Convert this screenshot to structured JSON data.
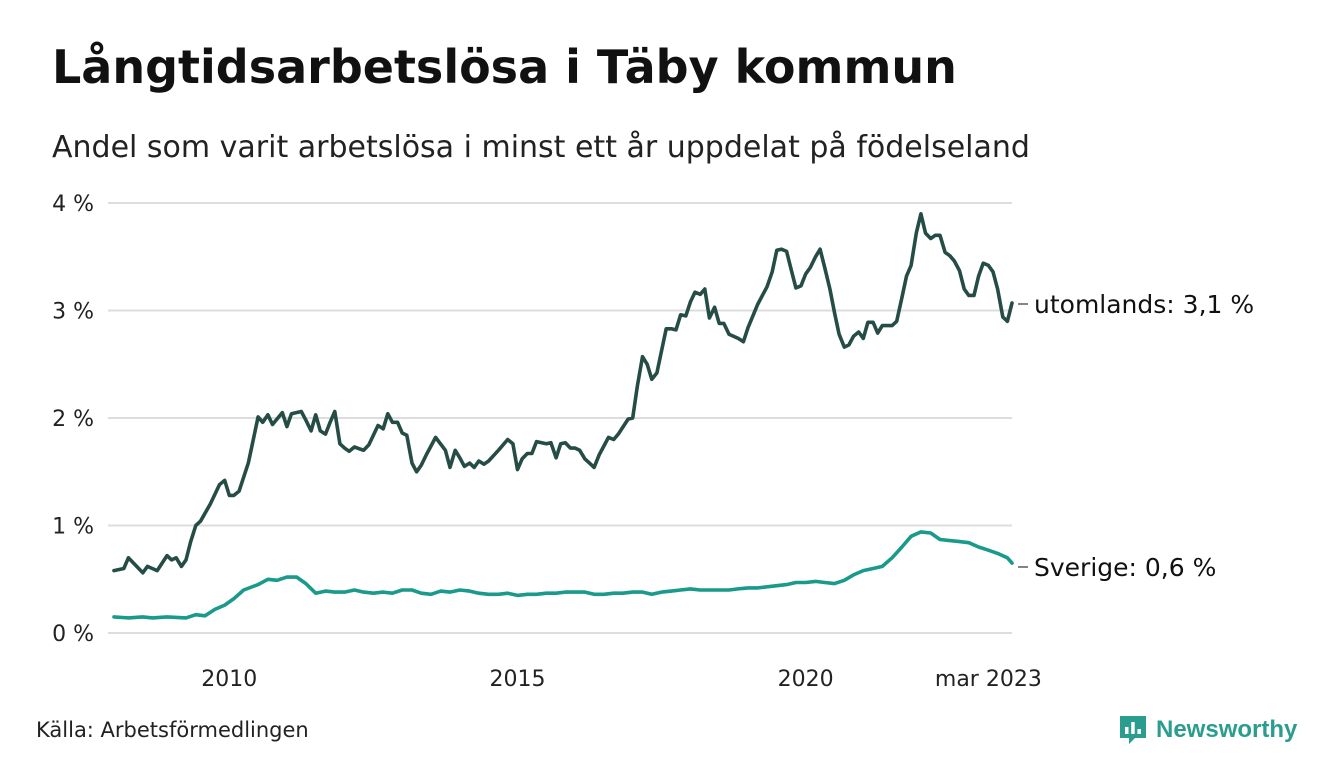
{
  "title": "Långtidsarbetslösa i Täby kommun",
  "subtitle": "Andel som varit arbetslösa i minst ett år uppdelat på födelseland",
  "source": "Källa: Arbetsförmedlingen",
  "logo": {
    "text": "Newsworthy",
    "icon": "newsworthy-logo-icon",
    "color": "#2a9d8f"
  },
  "chart_data": {
    "type": "line",
    "xlim": [
      2008.0,
      2023.17
    ],
    "ylim": [
      0,
      4
    ],
    "grid": true,
    "y_ticks": [
      {
        "value": 0,
        "label": "0 %"
      },
      {
        "value": 1,
        "label": "1 %"
      },
      {
        "value": 2,
        "label": "2 %"
      },
      {
        "value": 3,
        "label": "3 %"
      },
      {
        "value": 4,
        "label": "4 %"
      }
    ],
    "x_ticks": [
      {
        "value": 2010,
        "label": "2010"
      },
      {
        "value": 2015,
        "label": "2015"
      },
      {
        "value": 2020,
        "label": "2020"
      },
      {
        "value": 2023.17,
        "label": "mar 2023"
      }
    ],
    "series": [
      {
        "name": "utomlands",
        "end_label": "utomlands: 3,1 %",
        "color": "#264d45",
        "points": [
          [
            2008.0,
            0.58
          ],
          [
            2008.17,
            0.6
          ],
          [
            2008.25,
            0.7
          ],
          [
            2008.5,
            0.56
          ],
          [
            2008.58,
            0.62
          ],
          [
            2008.75,
            0.58
          ],
          [
            2008.92,
            0.72
          ],
          [
            2009.0,
            0.68
          ],
          [
            2009.08,
            0.7
          ],
          [
            2009.17,
            0.62
          ],
          [
            2009.25,
            0.68
          ],
          [
            2009.33,
            0.85
          ],
          [
            2009.42,
            1.0
          ],
          [
            2009.5,
            1.04
          ],
          [
            2009.67,
            1.2
          ],
          [
            2009.83,
            1.38
          ],
          [
            2009.92,
            1.42
          ],
          [
            2010.0,
            1.28
          ],
          [
            2010.08,
            1.28
          ],
          [
            2010.17,
            1.32
          ],
          [
            2010.33,
            1.58
          ],
          [
            2010.5,
            2.01
          ],
          [
            2010.58,
            1.96
          ],
          [
            2010.67,
            2.03
          ],
          [
            2010.75,
            1.94
          ],
          [
            2010.92,
            2.05
          ],
          [
            2011.0,
            1.92
          ],
          [
            2011.08,
            2.04
          ],
          [
            2011.25,
            2.06
          ],
          [
            2011.33,
            1.98
          ],
          [
            2011.42,
            1.88
          ],
          [
            2011.5,
            2.03
          ],
          [
            2011.58,
            1.88
          ],
          [
            2011.67,
            1.85
          ],
          [
            2011.75,
            1.96
          ],
          [
            2011.83,
            2.06
          ],
          [
            2011.92,
            1.76
          ],
          [
            2012.0,
            1.72
          ],
          [
            2012.08,
            1.69
          ],
          [
            2012.17,
            1.73
          ],
          [
            2012.33,
            1.7
          ],
          [
            2012.42,
            1.75
          ],
          [
            2012.58,
            1.93
          ],
          [
            2012.67,
            1.9
          ],
          [
            2012.75,
            2.04
          ],
          [
            2012.83,
            1.96
          ],
          [
            2012.92,
            1.96
          ],
          [
            2013.0,
            1.86
          ],
          [
            2013.08,
            1.84
          ],
          [
            2013.17,
            1.58
          ],
          [
            2013.25,
            1.5
          ],
          [
            2013.33,
            1.56
          ],
          [
            2013.42,
            1.66
          ],
          [
            2013.58,
            1.82
          ],
          [
            2013.75,
            1.7
          ],
          [
            2013.83,
            1.54
          ],
          [
            2013.92,
            1.7
          ],
          [
            2014.0,
            1.63
          ],
          [
            2014.08,
            1.55
          ],
          [
            2014.17,
            1.58
          ],
          [
            2014.25,
            1.54
          ],
          [
            2014.33,
            1.6
          ],
          [
            2014.42,
            1.57
          ],
          [
            2014.5,
            1.6
          ],
          [
            2014.67,
            1.7
          ],
          [
            2014.83,
            1.8
          ],
          [
            2014.92,
            1.76
          ],
          [
            2015.0,
            1.52
          ],
          [
            2015.08,
            1.62
          ],
          [
            2015.17,
            1.67
          ],
          [
            2015.25,
            1.67
          ],
          [
            2015.33,
            1.78
          ],
          [
            2015.5,
            1.76
          ],
          [
            2015.58,
            1.77
          ],
          [
            2015.67,
            1.63
          ],
          [
            2015.75,
            1.76
          ],
          [
            2015.83,
            1.77
          ],
          [
            2015.92,
            1.72
          ],
          [
            2016.0,
            1.72
          ],
          [
            2016.08,
            1.7
          ],
          [
            2016.17,
            1.62
          ],
          [
            2016.25,
            1.58
          ],
          [
            2016.33,
            1.54
          ],
          [
            2016.42,
            1.66
          ],
          [
            2016.58,
            1.82
          ],
          [
            2016.67,
            1.8
          ],
          [
            2016.75,
            1.85
          ],
          [
            2016.92,
            1.99
          ],
          [
            2017.0,
            2.0
          ],
          [
            2017.08,
            2.3
          ],
          [
            2017.17,
            2.57
          ],
          [
            2017.25,
            2.5
          ],
          [
            2017.33,
            2.36
          ],
          [
            2017.42,
            2.42
          ],
          [
            2017.58,
            2.83
          ],
          [
            2017.67,
            2.83
          ],
          [
            2017.75,
            2.82
          ],
          [
            2017.83,
            2.96
          ],
          [
            2017.92,
            2.95
          ],
          [
            2018.0,
            3.08
          ],
          [
            2018.08,
            3.17
          ],
          [
            2018.17,
            3.15
          ],
          [
            2018.25,
            3.2
          ],
          [
            2018.33,
            2.93
          ],
          [
            2018.42,
            3.03
          ],
          [
            2018.5,
            2.88
          ],
          [
            2018.58,
            2.88
          ],
          [
            2018.67,
            2.78
          ],
          [
            2018.83,
            2.74
          ],
          [
            2018.92,
            2.71
          ],
          [
            2019.0,
            2.84
          ],
          [
            2019.17,
            3.06
          ],
          [
            2019.33,
            3.22
          ],
          [
            2019.42,
            3.36
          ],
          [
            2019.5,
            3.56
          ],
          [
            2019.58,
            3.57
          ],
          [
            2019.67,
            3.55
          ],
          [
            2019.75,
            3.38
          ],
          [
            2019.83,
            3.21
          ],
          [
            2019.92,
            3.23
          ],
          [
            2020.0,
            3.34
          ],
          [
            2020.08,
            3.4
          ],
          [
            2020.17,
            3.5
          ],
          [
            2020.25,
            3.57
          ],
          [
            2020.33,
            3.4
          ],
          [
            2020.42,
            3.2
          ],
          [
            2020.5,
            2.98
          ],
          [
            2020.58,
            2.78
          ],
          [
            2020.67,
            2.66
          ],
          [
            2020.75,
            2.68
          ],
          [
            2020.83,
            2.76
          ],
          [
            2020.92,
            2.8
          ],
          [
            2021.0,
            2.74
          ],
          [
            2021.08,
            2.89
          ],
          [
            2021.17,
            2.89
          ],
          [
            2021.25,
            2.79
          ],
          [
            2021.33,
            2.86
          ],
          [
            2021.5,
            2.86
          ],
          [
            2021.58,
            2.9
          ],
          [
            2021.67,
            3.12
          ],
          [
            2021.75,
            3.32
          ],
          [
            2021.83,
            3.42
          ],
          [
            2021.92,
            3.72
          ],
          [
            2022.0,
            3.9
          ],
          [
            2022.08,
            3.72
          ],
          [
            2022.17,
            3.67
          ],
          [
            2022.25,
            3.7
          ],
          [
            2022.33,
            3.7
          ],
          [
            2022.42,
            3.54
          ],
          [
            2022.5,
            3.51
          ],
          [
            2022.58,
            3.46
          ],
          [
            2022.67,
            3.37
          ],
          [
            2022.75,
            3.2
          ],
          [
            2022.83,
            3.14
          ],
          [
            2022.92,
            3.14
          ],
          [
            2023.0,
            3.32
          ],
          [
            2023.08,
            3.44
          ],
          [
            2023.17,
            3.42
          ],
          [
            2023.25,
            3.36
          ],
          [
            2023.33,
            3.2
          ],
          [
            2023.42,
            2.94
          ],
          [
            2023.5,
            2.9
          ],
          [
            2023.58,
            3.07
          ]
        ]
      },
      {
        "name": "Sverige",
        "end_label": "Sverige: 0,6 %",
        "color": "#1a9a8a",
        "points": [
          [
            2008.0,
            0.15
          ],
          [
            2008.25,
            0.14
          ],
          [
            2008.5,
            0.15
          ],
          [
            2008.67,
            0.14
          ],
          [
            2008.92,
            0.15
          ],
          [
            2009.25,
            0.14
          ],
          [
            2009.42,
            0.17
          ],
          [
            2009.58,
            0.16
          ],
          [
            2009.75,
            0.22
          ],
          [
            2009.92,
            0.26
          ],
          [
            2010.08,
            0.32
          ],
          [
            2010.25,
            0.4
          ],
          [
            2010.5,
            0.45
          ],
          [
            2010.67,
            0.5
          ],
          [
            2010.83,
            0.49
          ],
          [
            2011.0,
            0.52
          ],
          [
            2011.17,
            0.52
          ],
          [
            2011.33,
            0.46
          ],
          [
            2011.5,
            0.37
          ],
          [
            2011.67,
            0.39
          ],
          [
            2011.83,
            0.38
          ],
          [
            2012.0,
            0.38
          ],
          [
            2012.17,
            0.4
          ],
          [
            2012.33,
            0.38
          ],
          [
            2012.5,
            0.37
          ],
          [
            2012.67,
            0.38
          ],
          [
            2012.83,
            0.37
          ],
          [
            2013.0,
            0.4
          ],
          [
            2013.17,
            0.4
          ],
          [
            2013.33,
            0.37
          ],
          [
            2013.5,
            0.36
          ],
          [
            2013.67,
            0.39
          ],
          [
            2013.83,
            0.38
          ],
          [
            2014.0,
            0.4
          ],
          [
            2014.17,
            0.39
          ],
          [
            2014.33,
            0.37
          ],
          [
            2014.5,
            0.36
          ],
          [
            2014.67,
            0.36
          ],
          [
            2014.83,
            0.37
          ],
          [
            2015.0,
            0.35
          ],
          [
            2015.17,
            0.36
          ],
          [
            2015.33,
            0.36
          ],
          [
            2015.5,
            0.37
          ],
          [
            2015.67,
            0.37
          ],
          [
            2015.83,
            0.38
          ],
          [
            2016.0,
            0.38
          ],
          [
            2016.17,
            0.38
          ],
          [
            2016.33,
            0.36
          ],
          [
            2016.5,
            0.36
          ],
          [
            2016.67,
            0.37
          ],
          [
            2016.83,
            0.37
          ],
          [
            2017.0,
            0.38
          ],
          [
            2017.17,
            0.38
          ],
          [
            2017.33,
            0.36
          ],
          [
            2017.5,
            0.38
          ],
          [
            2017.67,
            0.39
          ],
          [
            2017.83,
            0.4
          ],
          [
            2018.0,
            0.41
          ],
          [
            2018.17,
            0.4
          ],
          [
            2018.33,
            0.4
          ],
          [
            2018.5,
            0.4
          ],
          [
            2018.67,
            0.4
          ],
          [
            2018.83,
            0.41
          ],
          [
            2019.0,
            0.42
          ],
          [
            2019.17,
            0.42
          ],
          [
            2019.33,
            0.43
          ],
          [
            2019.5,
            0.44
          ],
          [
            2019.67,
            0.45
          ],
          [
            2019.83,
            0.47
          ],
          [
            2020.0,
            0.47
          ],
          [
            2020.17,
            0.48
          ],
          [
            2020.33,
            0.47
          ],
          [
            2020.5,
            0.46
          ],
          [
            2020.67,
            0.49
          ],
          [
            2020.83,
            0.54
          ],
          [
            2021.0,
            0.58
          ],
          [
            2021.17,
            0.6
          ],
          [
            2021.33,
            0.62
          ],
          [
            2021.5,
            0.7
          ],
          [
            2021.67,
            0.8
          ],
          [
            2021.83,
            0.9
          ],
          [
            2022.0,
            0.94
          ],
          [
            2022.17,
            0.93
          ],
          [
            2022.33,
            0.87
          ],
          [
            2022.5,
            0.86
          ],
          [
            2022.67,
            0.85
          ],
          [
            2022.83,
            0.84
          ],
          [
            2023.0,
            0.8
          ],
          [
            2023.17,
            0.77
          ],
          [
            2023.33,
            0.74
          ],
          [
            2023.5,
            0.7
          ],
          [
            2023.58,
            0.65
          ]
        ]
      }
    ]
  }
}
